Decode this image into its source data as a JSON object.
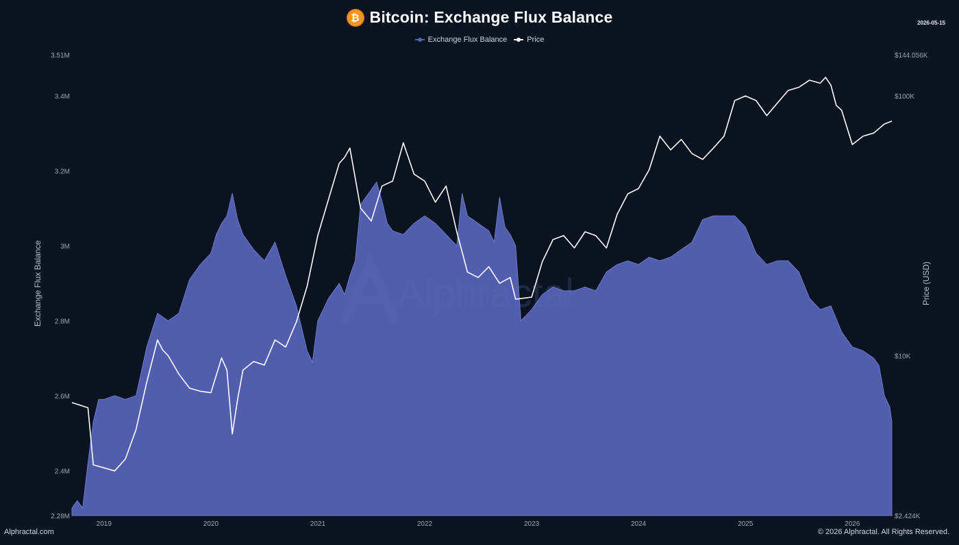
{
  "header": {
    "title": "Bitcoin: Exchange Flux Balance",
    "date": "2026-05-15",
    "logo_icon": "bitcoin-icon",
    "logo_glyph": "₿"
  },
  "footer": {
    "brand": "Alphractal.com",
    "copyright": "© 2026 Alphractal. All Rights Reserved."
  },
  "watermark": "Alphractal",
  "chart_data": {
    "type": "area",
    "title": "Bitcoin: Exchange Flux Balance",
    "legend_position": "top-center",
    "grid": false,
    "x_ticks": [
      "2019",
      "2020",
      "2021",
      "2022",
      "2023",
      "2024",
      "2025",
      "2026"
    ],
    "x_range": [
      2018.7,
      2026.37
    ],
    "y_left": {
      "label": "Exchange Flux Balance",
      "range": [
        2280000,
        3510000
      ],
      "ticks": [
        {
          "value": 2280000,
          "label": "2.28M"
        },
        {
          "value": 2400000,
          "label": "2.4M"
        },
        {
          "value": 2600000,
          "label": "2.6M"
        },
        {
          "value": 2800000,
          "label": "2.8M"
        },
        {
          "value": 3000000,
          "label": "3M"
        },
        {
          "value": 3200000,
          "label": "3.2M"
        },
        {
          "value": 3400000,
          "label": "3.4M"
        },
        {
          "value": 3510000,
          "label": "3.51M"
        }
      ]
    },
    "y_right": {
      "label": "Price (USD)",
      "scale": "log",
      "range": [
        2424,
        144056
      ],
      "ticks": [
        {
          "value": 2424,
          "label": "$2.424K"
        },
        {
          "value": 10000,
          "label": "$10K"
        },
        {
          "value": 100000,
          "label": "$100K"
        },
        {
          "value": 144056,
          "label": "$144.056K"
        }
      ]
    },
    "series": [
      {
        "name": "Exchange Flux Balance",
        "kind": "area",
        "axis": "left",
        "color": "#5563b5",
        "points": [
          [
            2018.7,
            2300000
          ],
          [
            2018.75,
            2320000
          ],
          [
            2018.8,
            2300000
          ],
          [
            2018.85,
            2420000
          ],
          [
            2018.9,
            2530000
          ],
          [
            2018.95,
            2590000
          ],
          [
            2019.0,
            2590000
          ],
          [
            2019.1,
            2600000
          ],
          [
            2019.2,
            2590000
          ],
          [
            2019.3,
            2600000
          ],
          [
            2019.4,
            2730000
          ],
          [
            2019.5,
            2820000
          ],
          [
            2019.6,
            2800000
          ],
          [
            2019.7,
            2820000
          ],
          [
            2019.8,
            2910000
          ],
          [
            2019.9,
            2950000
          ],
          [
            2020.0,
            2980000
          ],
          [
            2020.05,
            3030000
          ],
          [
            2020.1,
            3060000
          ],
          [
            2020.15,
            3080000
          ],
          [
            2020.2,
            3140000
          ],
          [
            2020.25,
            3070000
          ],
          [
            2020.3,
            3030000
          ],
          [
            2020.4,
            2990000
          ],
          [
            2020.5,
            2960000
          ],
          [
            2020.6,
            3010000
          ],
          [
            2020.7,
            2920000
          ],
          [
            2020.8,
            2840000
          ],
          [
            2020.9,
            2720000
          ],
          [
            2020.95,
            2690000
          ],
          [
            2021.0,
            2800000
          ],
          [
            2021.1,
            2860000
          ],
          [
            2021.2,
            2900000
          ],
          [
            2021.25,
            2870000
          ],
          [
            2021.3,
            2920000
          ],
          [
            2021.35,
            2960000
          ],
          [
            2021.4,
            3110000
          ],
          [
            2021.45,
            3130000
          ],
          [
            2021.5,
            3150000
          ],
          [
            2021.55,
            3170000
          ],
          [
            2021.6,
            3120000
          ],
          [
            2021.65,
            3060000
          ],
          [
            2021.7,
            3040000
          ],
          [
            2021.8,
            3030000
          ],
          [
            2021.9,
            3060000
          ],
          [
            2022.0,
            3080000
          ],
          [
            2022.1,
            3060000
          ],
          [
            2022.2,
            3030000
          ],
          [
            2022.3,
            3000000
          ],
          [
            2022.35,
            3140000
          ],
          [
            2022.4,
            3080000
          ],
          [
            2022.5,
            3060000
          ],
          [
            2022.6,
            3040000
          ],
          [
            2022.65,
            3010000
          ],
          [
            2022.7,
            3130000
          ],
          [
            2022.75,
            3050000
          ],
          [
            2022.8,
            3030000
          ],
          [
            2022.85,
            3000000
          ],
          [
            2022.9,
            2800000
          ],
          [
            2023.0,
            2830000
          ],
          [
            2023.1,
            2870000
          ],
          [
            2023.2,
            2890000
          ],
          [
            2023.3,
            2880000
          ],
          [
            2023.4,
            2880000
          ],
          [
            2023.5,
            2890000
          ],
          [
            2023.6,
            2880000
          ],
          [
            2023.7,
            2930000
          ],
          [
            2023.8,
            2950000
          ],
          [
            2023.9,
            2960000
          ],
          [
            2024.0,
            2950000
          ],
          [
            2024.1,
            2970000
          ],
          [
            2024.2,
            2960000
          ],
          [
            2024.3,
            2970000
          ],
          [
            2024.4,
            2990000
          ],
          [
            2024.5,
            3010000
          ],
          [
            2024.6,
            3070000
          ],
          [
            2024.7,
            3080000
          ],
          [
            2024.8,
            3080000
          ],
          [
            2024.9,
            3080000
          ],
          [
            2025.0,
            3050000
          ],
          [
            2025.1,
            2980000
          ],
          [
            2025.2,
            2950000
          ],
          [
            2025.3,
            2960000
          ],
          [
            2025.4,
            2960000
          ],
          [
            2025.5,
            2930000
          ],
          [
            2025.6,
            2860000
          ],
          [
            2025.7,
            2830000
          ],
          [
            2025.8,
            2840000
          ],
          [
            2025.9,
            2770000
          ],
          [
            2026.0,
            2730000
          ],
          [
            2026.1,
            2720000
          ],
          [
            2026.2,
            2700000
          ],
          [
            2026.25,
            2680000
          ],
          [
            2026.3,
            2600000
          ],
          [
            2026.35,
            2570000
          ],
          [
            2026.37,
            2530000
          ]
        ]
      },
      {
        "name": "Price",
        "kind": "line",
        "axis": "right",
        "color": "#ffffff",
        "points": [
          [
            2018.7,
            6600
          ],
          [
            2018.8,
            6400
          ],
          [
            2018.85,
            6300
          ],
          [
            2018.9,
            3800
          ],
          [
            2019.0,
            3700
          ],
          [
            2019.1,
            3600
          ],
          [
            2019.2,
            4000
          ],
          [
            2019.3,
            5200
          ],
          [
            2019.4,
            7900
          ],
          [
            2019.5,
            11500
          ],
          [
            2019.55,
            10500
          ],
          [
            2019.6,
            10000
          ],
          [
            2019.7,
            8500
          ],
          [
            2019.8,
            7500
          ],
          [
            2019.9,
            7300
          ],
          [
            2020.0,
            7200
          ],
          [
            2020.1,
            9800
          ],
          [
            2020.15,
            8800
          ],
          [
            2020.2,
            5000
          ],
          [
            2020.25,
            6800
          ],
          [
            2020.3,
            8800
          ],
          [
            2020.4,
            9500
          ],
          [
            2020.5,
            9200
          ],
          [
            2020.6,
            11500
          ],
          [
            2020.7,
            10800
          ],
          [
            2020.8,
            13500
          ],
          [
            2020.9,
            18500
          ],
          [
            2021.0,
            29000
          ],
          [
            2021.1,
            40000
          ],
          [
            2021.2,
            55000
          ],
          [
            2021.25,
            58000
          ],
          [
            2021.3,
            63000
          ],
          [
            2021.4,
            37000
          ],
          [
            2021.5,
            33000
          ],
          [
            2021.6,
            45000
          ],
          [
            2021.7,
            47000
          ],
          [
            2021.8,
            66000
          ],
          [
            2021.9,
            50000
          ],
          [
            2022.0,
            47000
          ],
          [
            2022.1,
            39000
          ],
          [
            2022.2,
            45000
          ],
          [
            2022.3,
            30000
          ],
          [
            2022.4,
            21000
          ],
          [
            2022.5,
            20000
          ],
          [
            2022.6,
            22000
          ],
          [
            2022.7,
            19000
          ],
          [
            2022.8,
            20000
          ],
          [
            2022.85,
            16500
          ],
          [
            2023.0,
            16800
          ],
          [
            2023.1,
            23000
          ],
          [
            2023.2,
            28000
          ],
          [
            2023.3,
            29000
          ],
          [
            2023.4,
            26000
          ],
          [
            2023.5,
            30000
          ],
          [
            2023.6,
            29000
          ],
          [
            2023.7,
            26000
          ],
          [
            2023.8,
            35000
          ],
          [
            2023.9,
            42000
          ],
          [
            2024.0,
            44000
          ],
          [
            2024.1,
            52000
          ],
          [
            2024.2,
            70000
          ],
          [
            2024.3,
            62000
          ],
          [
            2024.4,
            68000
          ],
          [
            2024.5,
            60000
          ],
          [
            2024.6,
            57000
          ],
          [
            2024.7,
            63000
          ],
          [
            2024.8,
            70000
          ],
          [
            2024.9,
            96000
          ],
          [
            2025.0,
            100000
          ],
          [
            2025.1,
            96000
          ],
          [
            2025.2,
            84000
          ],
          [
            2025.3,
            94000
          ],
          [
            2025.4,
            105000
          ],
          [
            2025.5,
            108000
          ],
          [
            2025.6,
            115000
          ],
          [
            2025.7,
            112000
          ],
          [
            2025.75,
            118000
          ],
          [
            2025.8,
            110000
          ],
          [
            2025.85,
            92000
          ],
          [
            2025.9,
            88000
          ],
          [
            2026.0,
            65000
          ],
          [
            2026.1,
            70000
          ],
          [
            2026.2,
            72000
          ],
          [
            2026.3,
            78000
          ],
          [
            2026.37,
            80000
          ]
        ]
      }
    ]
  }
}
